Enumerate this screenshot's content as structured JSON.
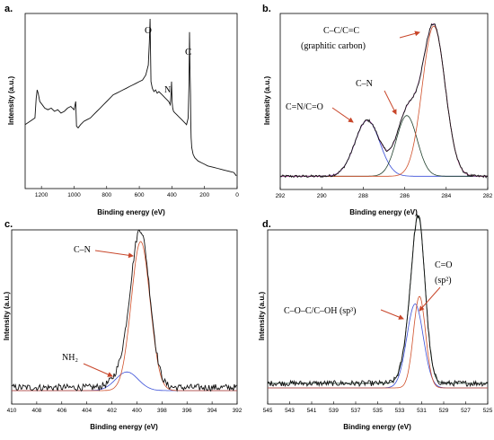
{
  "colors": {
    "raw": "#111111",
    "envelope": "#c060c0",
    "peak_red": "#d0502a",
    "peak_blue": "#3a4fd8",
    "peak_green": "#1f3f2c",
    "arrow": "#c8462a"
  },
  "chart_data": [
    {
      "type": "line",
      "letter": "a.",
      "xlabel": "Binding energy (eV)",
      "ylabel": "Intensity (a.u.)",
      "xlim": [
        1300,
        0
      ],
      "ylim": [
        0,
        100
      ],
      "xticks": [
        1200,
        1000,
        800,
        600,
        400,
        200,
        0
      ],
      "tick_labels": [
        "1200",
        "1000",
        "800",
        "600",
        "400",
        "200",
        "0"
      ],
      "series": [
        {
          "style": "raw",
          "x": [
            1300,
            1270,
            1240,
            1232,
            1226,
            1220,
            1210,
            1195,
            1180,
            1160,
            1140,
            1120,
            1100,
            1080,
            1060,
            1040,
            1020,
            1000,
            990,
            985,
            975,
            960,
            940,
            920,
            900,
            880,
            860,
            840,
            820,
            800,
            780,
            760,
            740,
            720,
            700,
            680,
            660,
            640,
            620,
            600,
            580,
            560,
            545,
            538,
            534,
            531,
            528,
            520,
            510,
            500,
            490,
            480,
            460,
            440,
            420,
            410,
            405,
            402,
            399,
            395,
            390,
            380,
            370,
            360,
            340,
            320,
            310,
            300,
            295,
            292,
            289,
            286,
            284,
            282,
            278,
            270,
            260,
            240,
            220,
            200,
            180,
            160,
            140,
            120,
            100,
            80,
            60,
            40,
            20,
            5
          ],
          "y": [
            36,
            38,
            40,
            52,
            57,
            55,
            50,
            48,
            46,
            45,
            46,
            44,
            45,
            43,
            44,
            46,
            47,
            45,
            50,
            35,
            34,
            36,
            38,
            39,
            40,
            42,
            44,
            46,
            48,
            50,
            52,
            54,
            55,
            56,
            57,
            58,
            59,
            60,
            61,
            62,
            63,
            66,
            72,
            86,
            100,
            80,
            62,
            58,
            56,
            57,
            55,
            56,
            54,
            52,
            50,
            48,
            55,
            62,
            50,
            46,
            44,
            43,
            42,
            41,
            39,
            37,
            36,
            40,
            60,
            92,
            70,
            55,
            38,
            28,
            22,
            18,
            16,
            14,
            13,
            12,
            11,
            10.5,
            10,
            9.5,
            9,
            8.5,
            8,
            7.5,
            7,
            5
          ]
        }
      ],
      "annotations": [
        {
          "text": "O",
          "x": 530,
          "y": 100
        },
        {
          "text": "N",
          "x": 400,
          "y": 65
        },
        {
          "text": "C",
          "x": 290,
          "y": 92
        }
      ]
    },
    {
      "type": "line",
      "letter": "b.",
      "xlabel": "Binding energy (eV)",
      "ylabel": "Intensity (a.u.)",
      "xlim": [
        292,
        282
      ],
      "ylim": [
        0,
        100
      ],
      "xticks": [
        292,
        290,
        288,
        286,
        284,
        282
      ],
      "tick_labels": [
        "292",
        "290",
        "288",
        "286",
        "284",
        "282"
      ],
      "series": [
        {
          "style": "peak_blue",
          "peak": {
            "center": 287.8,
            "height": 35,
            "sigma": 0.6
          },
          "baseline": 1.5
        },
        {
          "style": "peak_green",
          "peak": {
            "center": 285.9,
            "height": 38,
            "sigma": 0.5
          },
          "baseline": 1.5
        },
        {
          "style": "peak_red",
          "peak": {
            "center": 284.6,
            "height": 94,
            "sigma": 0.55
          },
          "baseline": 1.5
        },
        {
          "style": "envelope",
          "sum_of": [
            0,
            1,
            2
          ],
          "baseline": 1.5
        },
        {
          "style": "raw",
          "sum_of": [
            0,
            1,
            2
          ],
          "baseline": 1.5,
          "noise": 0.8
        }
      ],
      "annotations": [
        {
          "text": "C=N/C=O",
          "target": [
            287.8,
            38
          ]
        },
        {
          "text": "C–N",
          "target": [
            285.9,
            40
          ]
        },
        {
          "text": "C–C/C=C",
          "target": [
            284.8,
            96
          ]
        },
        {
          "text": "(graphitic carbon)"
        }
      ]
    },
    {
      "type": "line",
      "letter": "c.",
      "xlabel": "Binding energy (eV)",
      "ylabel": "Intensity (a.u.)",
      "xlim": [
        410,
        392
      ],
      "ylim": [
        0,
        100
      ],
      "xticks": [
        410,
        408,
        406,
        404,
        402,
        400,
        398,
        396,
        394,
        392
      ],
      "tick_labels": [
        "410",
        "408",
        "406",
        "404",
        "402",
        "400",
        "398",
        "396",
        "394",
        "392"
      ],
      "series": [
        {
          "style": "peak_blue",
          "peak": {
            "center": 400.8,
            "height": 12,
            "sigma": 0.9
          },
          "baseline": 0
        },
        {
          "style": "peak_red",
          "peak": {
            "center": 399.7,
            "height": 96,
            "sigma": 0.75
          },
          "baseline": 0
        },
        {
          "style": "raw",
          "sum_of": [
            0,
            1
          ],
          "baseline": 2,
          "noise": 2.2
        }
      ],
      "annotations": [
        {
          "text": "C–N",
          "target": [
            399.8,
            92
          ]
        },
        {
          "text": "NH₂",
          "target": [
            401.3,
            12
          ]
        }
      ]
    },
    {
      "type": "line",
      "letter": "d.",
      "xlabel": "Binding energy (eV)",
      "ylabel": "Intensity (a.u.)",
      "xlim": [
        545,
        525
      ],
      "ylim": [
        0,
        100
      ],
      "xticks": [
        545,
        543,
        541,
        539,
        537,
        535,
        533,
        531,
        529,
        527,
        525
      ],
      "tick_labels": [
        "545",
        "543",
        "541",
        "539",
        "537",
        "535",
        "533",
        "531",
        "529",
        "527",
        "525"
      ],
      "series": [
        {
          "style": "peak_blue",
          "peak": {
            "center": 531.6,
            "height": 55,
            "sigma": 0.75
          },
          "baseline": 0
        },
        {
          "style": "peak_red",
          "peak": {
            "center": 531.2,
            "height": 60,
            "sigma": 0.55
          },
          "baseline": 0
        },
        {
          "style": "peak_green",
          "sum_of": [
            0,
            1
          ],
          "baseline": 3
        },
        {
          "style": "raw",
          "sum_of": [
            0,
            1
          ],
          "baseline": 3,
          "noise": 1.8
        }
      ],
      "annotations": [
        {
          "text": "C=O",
          "target": [
            531.2,
            64
          ]
        },
        {
          "text": "(sp²)"
        },
        {
          "text": "C–O–C/C–OH (sp³)",
          "target": [
            531.8,
            62
          ]
        }
      ]
    }
  ]
}
